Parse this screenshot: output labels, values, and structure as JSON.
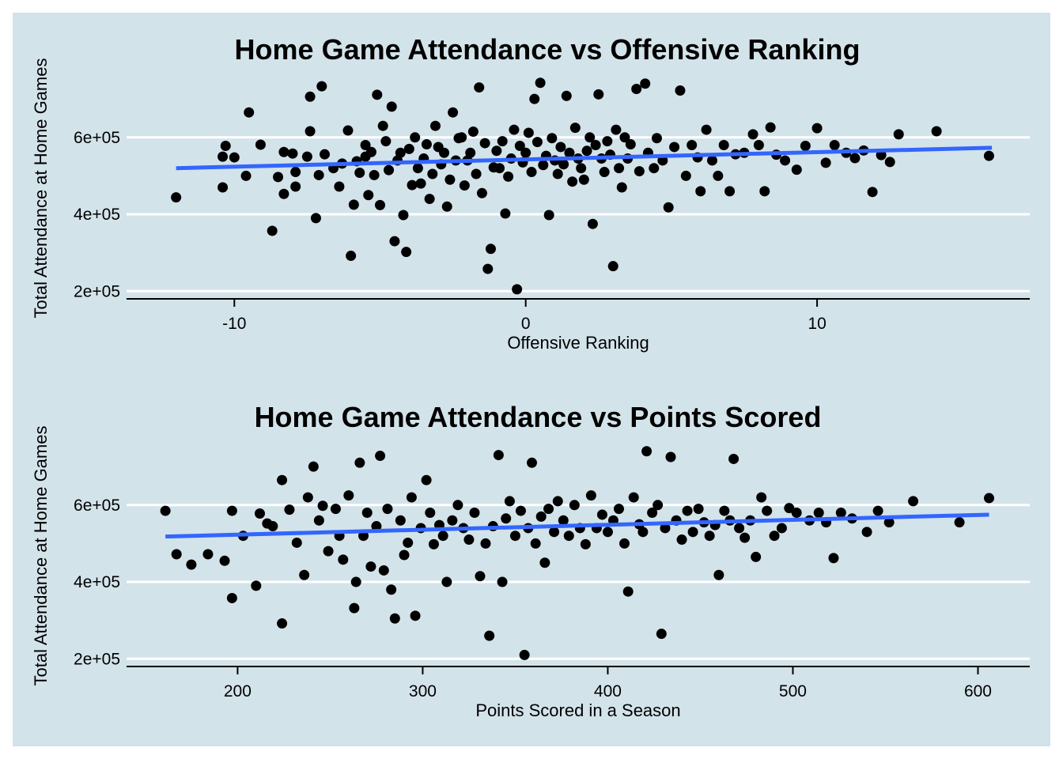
{
  "colors": {
    "background": "#d3e3ea",
    "gridline": "#ffffff",
    "points": "#000000",
    "trend_line": "#3366ff"
  },
  "chart_data": [
    {
      "type": "scatter",
      "title": "Home Game Attendance vs Offensive Ranking",
      "xlabel": "Offensive Ranking",
      "ylabel": "Total Attendance at Home Games",
      "xlim": [
        -13.7,
        17.3
      ],
      "ylim": [
        180000,
        760000
      ],
      "x_ticks": [
        -10,
        0,
        10
      ],
      "x_tick_labels": [
        "-10",
        "0",
        "10"
      ],
      "y_ticks": [
        200000,
        400000,
        600000
      ],
      "y_tick_labels": [
        "2e+05",
        "4e+05",
        "6e+05"
      ],
      "grid": "horizontal",
      "trend_line": {
        "x": [
          -12,
          16
        ],
        "y": [
          520000,
          573000
        ]
      },
      "points": [
        [
          -12,
          444000
        ],
        [
          -10.4,
          470000
        ],
        [
          -10.4,
          550000
        ],
        [
          -10.3,
          578000
        ],
        [
          -10,
          548000
        ],
        [
          -9.6,
          500000
        ],
        [
          -9.5,
          665000
        ],
        [
          -9.1,
          581000
        ],
        [
          -8.7,
          357000
        ],
        [
          -8.5,
          497000
        ],
        [
          -8.3,
          562000
        ],
        [
          -8.3,
          453000
        ],
        [
          -8,
          558000
        ],
        [
          -7.9,
          510000
        ],
        [
          -7.9,
          472000
        ],
        [
          -7.5,
          550000
        ],
        [
          -7.4,
          706000
        ],
        [
          -7.4,
          616000
        ],
        [
          -7.2,
          390000
        ],
        [
          -7.1,
          502000
        ],
        [
          -7,
          733000
        ],
        [
          -6.9,
          556000
        ],
        [
          -6.6,
          520000
        ],
        [
          -6.4,
          472000
        ],
        [
          -6.3,
          532000
        ],
        [
          -6.1,
          618000
        ],
        [
          -6,
          292000
        ],
        [
          -5.9,
          425000
        ],
        [
          -5.8,
          538000
        ],
        [
          -5.7,
          508000
        ],
        [
          -5.5,
          580000
        ],
        [
          -5.5,
          550000
        ],
        [
          -5.4,
          450000
        ],
        [
          -5.3,
          562000
        ],
        [
          -5.2,
          502000
        ],
        [
          -5.1,
          711000
        ],
        [
          -5,
          424000
        ],
        [
          -4.9,
          630000
        ],
        [
          -4.8,
          590000
        ],
        [
          -4.7,
          515000
        ],
        [
          -4.6,
          680000
        ],
        [
          -4.5,
          330000
        ],
        [
          -4.4,
          540000
        ],
        [
          -4.3,
          560000
        ],
        [
          -4.2,
          398000
        ],
        [
          -4.1,
          302000
        ],
        [
          -4,
          570000
        ],
        [
          -3.9,
          476000
        ],
        [
          -3.8,
          600000
        ],
        [
          -3.7,
          520000
        ],
        [
          -3.6,
          480000
        ],
        [
          -3.5,
          545000
        ],
        [
          -3.4,
          582000
        ],
        [
          -3.3,
          440000
        ],
        [
          -3.2,
          505000
        ],
        [
          -3.1,
          630000
        ],
        [
          -3,
          575000
        ],
        [
          -2.9,
          530000
        ],
        [
          -2.8,
          560000
        ],
        [
          -2.7,
          420000
        ],
        [
          -2.6,
          490000
        ],
        [
          -2.5,
          665000
        ],
        [
          -2.4,
          540000
        ],
        [
          -2.3,
          598000
        ],
        [
          -2.2,
          600000
        ],
        [
          -2.1,
          475000
        ],
        [
          -2,
          540000
        ],
        [
          -1.9,
          560000
        ],
        [
          -1.8,
          615000
        ],
        [
          -1.7,
          505000
        ],
        [
          -1.6,
          730000
        ],
        [
          -1.5,
          455000
        ],
        [
          -1.4,
          585000
        ],
        [
          -1.3,
          258000
        ],
        [
          -1.2,
          310000
        ],
        [
          -1.1,
          522000
        ],
        [
          -1,
          565000
        ],
        [
          -0.9,
          520000
        ],
        [
          -0.8,
          590000
        ],
        [
          -0.7,
          402000
        ],
        [
          -0.6,
          498000
        ],
        [
          -0.5,
          545000
        ],
        [
          -0.4,
          620000
        ],
        [
          -0.3,
          205000
        ],
        [
          -0.2,
          578000
        ],
        [
          -0.1,
          535000
        ],
        [
          0,
          560000
        ],
        [
          0.1,
          612000
        ],
        [
          0.2,
          510000
        ],
        [
          0.3,
          700000
        ],
        [
          0.4,
          588000
        ],
        [
          0.5,
          742000
        ],
        [
          0.6,
          528000
        ],
        [
          0.7,
          552000
        ],
        [
          0.8,
          398000
        ],
        [
          0.9,
          598000
        ],
        [
          1,
          540000
        ],
        [
          1.1,
          505000
        ],
        [
          1.2,
          575000
        ],
        [
          1.3,
          530000
        ],
        [
          1.4,
          708000
        ],
        [
          1.5,
          560000
        ],
        [
          1.6,
          485000
        ],
        [
          1.7,
          625000
        ],
        [
          1.8,
          545000
        ],
        [
          1.9,
          520000
        ],
        [
          2,
          490000
        ],
        [
          2.1,
          565000
        ],
        [
          2.2,
          600000
        ],
        [
          2.3,
          375000
        ],
        [
          2.4,
          580000
        ],
        [
          2.5,
          712000
        ],
        [
          2.6,
          545000
        ],
        [
          2.7,
          510000
        ],
        [
          2.8,
          590000
        ],
        [
          2.9,
          555000
        ],
        [
          3,
          265000
        ],
        [
          3.1,
          620000
        ],
        [
          3.2,
          520000
        ],
        [
          3.3,
          470000
        ],
        [
          3.4,
          600000
        ],
        [
          3.5,
          545000
        ],
        [
          3.6,
          582000
        ],
        [
          3.8,
          726000
        ],
        [
          3.9,
          512000
        ],
        [
          4.1,
          740000
        ],
        [
          4.2,
          560000
        ],
        [
          4.4,
          520000
        ],
        [
          4.5,
          598000
        ],
        [
          4.7,
          540000
        ],
        [
          4.9,
          418000
        ],
        [
          5.1,
          575000
        ],
        [
          5.3,
          722000
        ],
        [
          5.5,
          500000
        ],
        [
          5.7,
          580000
        ],
        [
          5.9,
          548000
        ],
        [
          6,
          460000
        ],
        [
          6.2,
          620000
        ],
        [
          6.4,
          540000
        ],
        [
          6.6,
          500000
        ],
        [
          6.8,
          580000
        ],
        [
          7,
          460000
        ],
        [
          7.2,
          556000
        ],
        [
          7.5,
          560000
        ],
        [
          7.8,
          608000
        ],
        [
          8,
          580000
        ],
        [
          8.2,
          460000
        ],
        [
          8.4,
          626000
        ],
        [
          8.6,
          555000
        ],
        [
          8.9,
          540000
        ],
        [
          9.3,
          516000
        ],
        [
          9.6,
          578000
        ],
        [
          10,
          624000
        ],
        [
          10.3,
          534000
        ],
        [
          10.6,
          580000
        ],
        [
          11,
          560000
        ],
        [
          11.3,
          546000
        ],
        [
          11.6,
          566000
        ],
        [
          11.9,
          458000
        ],
        [
          12.2,
          554000
        ],
        [
          12.5,
          536000
        ],
        [
          12.8,
          608000
        ],
        [
          14.1,
          616000
        ],
        [
          15.9,
          552000
        ]
      ]
    },
    {
      "type": "scatter",
      "title": "Home Game Attendance vs Points Scored",
      "xlabel": "Points Scored in a Season",
      "ylabel": "Total Attendance at Home Games",
      "xlim": [
        140,
        628
      ],
      "ylim": [
        180000,
        760000
      ],
      "x_ticks": [
        200,
        300,
        400,
        500,
        600
      ],
      "x_tick_labels": [
        "200",
        "300",
        "400",
        "500",
        "600"
      ],
      "y_ticks": [
        200000,
        400000,
        600000
      ],
      "y_tick_labels": [
        "2e+05",
        "4e+05",
        "6e+05"
      ],
      "grid": "horizontal",
      "trend_line": {
        "x": [
          161,
          606
        ],
        "y": [
          518000,
          575000
        ]
      },
      "points": [
        [
          161,
          585000
        ],
        [
          167,
          472000
        ],
        [
          175,
          445000
        ],
        [
          184,
          472000
        ],
        [
          193,
          455000
        ],
        [
          197,
          358000
        ],
        [
          197,
          585000
        ],
        [
          203,
          520000
        ],
        [
          210,
          390000
        ],
        [
          212,
          578000
        ],
        [
          216,
          552000
        ],
        [
          219,
          545000
        ],
        [
          224,
          292000
        ],
        [
          224,
          665000
        ],
        [
          228,
          588000
        ],
        [
          232,
          502000
        ],
        [
          236,
          418000
        ],
        [
          238,
          620000
        ],
        [
          241,
          700000
        ],
        [
          244,
          560000
        ],
        [
          246,
          598000
        ],
        [
          249,
          480000
        ],
        [
          253,
          590000
        ],
        [
          255,
          520000
        ],
        [
          257,
          458000
        ],
        [
          260,
          625000
        ],
        [
          263,
          332000
        ],
        [
          264,
          400000
        ],
        [
          266,
          710000
        ],
        [
          268,
          520000
        ],
        [
          270,
          580000
        ],
        [
          272,
          440000
        ],
        [
          275,
          545000
        ],
        [
          277,
          728000
        ],
        [
          279,
          430000
        ],
        [
          281,
          590000
        ],
        [
          283,
          380000
        ],
        [
          285,
          305000
        ],
        [
          288,
          560000
        ],
        [
          290,
          470000
        ],
        [
          292,
          502000
        ],
        [
          294,
          620000
        ],
        [
          296,
          312000
        ],
        [
          299,
          540000
        ],
        [
          302,
          665000
        ],
        [
          304,
          580000
        ],
        [
          306,
          498000
        ],
        [
          309,
          548000
        ],
        [
          311,
          520000
        ],
        [
          313,
          400000
        ],
        [
          316,
          560000
        ],
        [
          319,
          600000
        ],
        [
          322,
          540000
        ],
        [
          325,
          510000
        ],
        [
          328,
          580000
        ],
        [
          331,
          415000
        ],
        [
          334,
          500000
        ],
        [
          336,
          260000
        ],
        [
          338,
          545000
        ],
        [
          341,
          730000
        ],
        [
          343,
          400000
        ],
        [
          345,
          565000
        ],
        [
          347,
          610000
        ],
        [
          350,
          520000
        ],
        [
          353,
          585000
        ],
        [
          355,
          210000
        ],
        [
          357,
          540000
        ],
        [
          359,
          710000
        ],
        [
          361,
          500000
        ],
        [
          364,
          570000
        ],
        [
          366,
          450000
        ],
        [
          368,
          590000
        ],
        [
          371,
          530000
        ],
        [
          373,
          610000
        ],
        [
          376,
          560000
        ],
        [
          379,
          520000
        ],
        [
          382,
          600000
        ],
        [
          385,
          540000
        ],
        [
          388,
          498000
        ],
        [
          391,
          625000
        ],
        [
          394,
          540000
        ],
        [
          397,
          575000
        ],
        [
          400,
          530000
        ],
        [
          403,
          560000
        ],
        [
          406,
          590000
        ],
        [
          409,
          500000
        ],
        [
          411,
          375000
        ],
        [
          414,
          620000
        ],
        [
          417,
          550000
        ],
        [
          419,
          530000
        ],
        [
          421,
          740000
        ],
        [
          424,
          580000
        ],
        [
          427,
          600000
        ],
        [
          429,
          265000
        ],
        [
          431,
          540000
        ],
        [
          434,
          725000
        ],
        [
          437,
          560000
        ],
        [
          440,
          510000
        ],
        [
          443,
          585000
        ],
        [
          446,
          530000
        ],
        [
          449,
          590000
        ],
        [
          452,
          555000
        ],
        [
          455,
          520000
        ],
        [
          458,
          548000
        ],
        [
          460,
          418000
        ],
        [
          463,
          585000
        ],
        [
          466,
          560000
        ],
        [
          468,
          720000
        ],
        [
          471,
          540000
        ],
        [
          474,
          515000
        ],
        [
          477,
          560000
        ],
        [
          480,
          465000
        ],
        [
          483,
          620000
        ],
        [
          486,
          585000
        ],
        [
          490,
          520000
        ],
        [
          494,
          540000
        ],
        [
          498,
          592000
        ],
        [
          502,
          580000
        ],
        [
          509,
          560000
        ],
        [
          514,
          580000
        ],
        [
          518,
          555000
        ],
        [
          522,
          462000
        ],
        [
          526,
          580000
        ],
        [
          532,
          565000
        ],
        [
          540,
          530000
        ],
        [
          546,
          585000
        ],
        [
          552,
          555000
        ],
        [
          565,
          610000
        ],
        [
          590,
          555000
        ],
        [
          606,
          618000
        ]
      ]
    }
  ]
}
